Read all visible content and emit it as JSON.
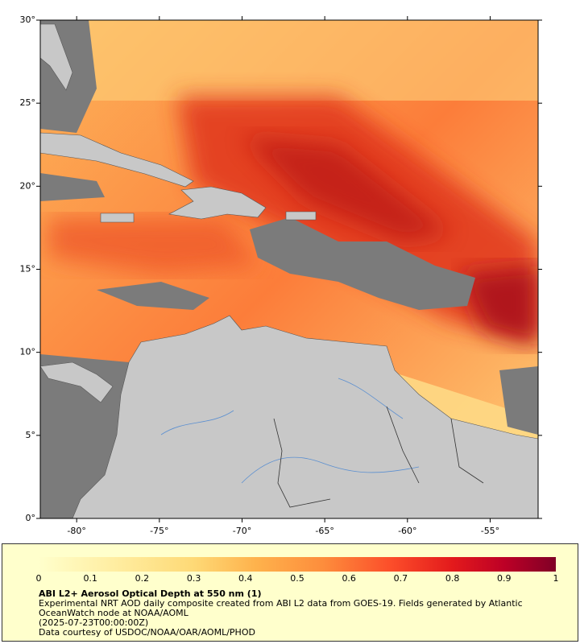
{
  "map": {
    "lon_range": [
      -82.2,
      -52.1
    ],
    "lat_range": [
      0,
      30
    ],
    "lon_ticks": [
      {
        "value": -80,
        "label": "-80°"
      },
      {
        "value": -75,
        "label": "-75°"
      },
      {
        "value": -70,
        "label": "-70°"
      },
      {
        "value": -65,
        "label": "-65°"
      },
      {
        "value": -60,
        "label": "-60°"
      },
      {
        "value": -55,
        "label": "-55°"
      }
    ],
    "lat_ticks": [
      {
        "value": 0,
        "label": "0°"
      },
      {
        "value": 5,
        "label": "5°"
      },
      {
        "value": 10,
        "label": "10°"
      },
      {
        "value": 15,
        "label": "15°"
      },
      {
        "value": 20,
        "label": "20°"
      },
      {
        "value": 25,
        "label": "25°"
      },
      {
        "value": 30,
        "label": "30°"
      }
    ]
  },
  "colorbar": {
    "range": [
      0,
      1
    ],
    "ticks": [
      0,
      0.1,
      0.2,
      0.3,
      0.4,
      0.5,
      0.6,
      0.7,
      0.8,
      0.9,
      1
    ]
  },
  "caption": {
    "title": "ABI L2+ Aerosol Optical Depth at 550 nm (1)",
    "description": "Experimental NRT AOD daily composite created from ABI L2 data from GOES-19. Fields generated by Atlantic OceanWatch node at NOAA/AOML",
    "date": "(2025-07-23T00:00:00Z)",
    "credit": "Data courtesy of USDOC/NOAA/OAR/AOML/PHOD"
  }
}
